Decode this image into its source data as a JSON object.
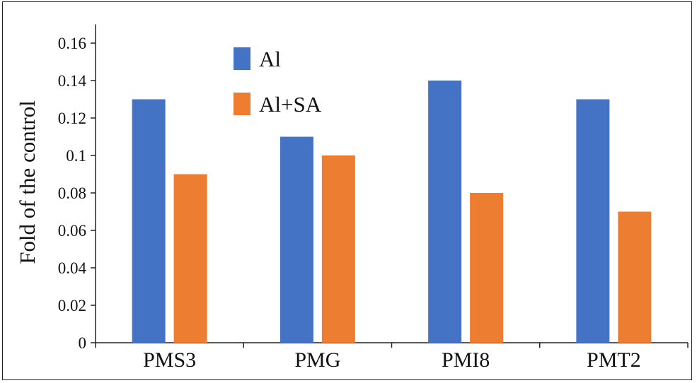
{
  "chart_data": {
    "type": "bar",
    "categories": [
      "PMS3",
      "PMG",
      "PMI8",
      "PMT2"
    ],
    "series": [
      {
        "name": "Al",
        "color": "#4472C4",
        "values": [
          0.13,
          0.11,
          0.14,
          0.13
        ]
      },
      {
        "name": "Al+SA",
        "color": "#ED7D31",
        "values": [
          0.09,
          0.1,
          0.08,
          0.07
        ]
      }
    ],
    "ylabel": "Fold of the control",
    "xlabel": "",
    "ylim": [
      0,
      0.17
    ],
    "yticks": [
      "0",
      "0.02",
      "0.04",
      "0.06",
      "0.08",
      "0.1",
      "0.12",
      "0.14",
      "0.16"
    ],
    "legend_position": "top-center",
    "grid": false
  }
}
